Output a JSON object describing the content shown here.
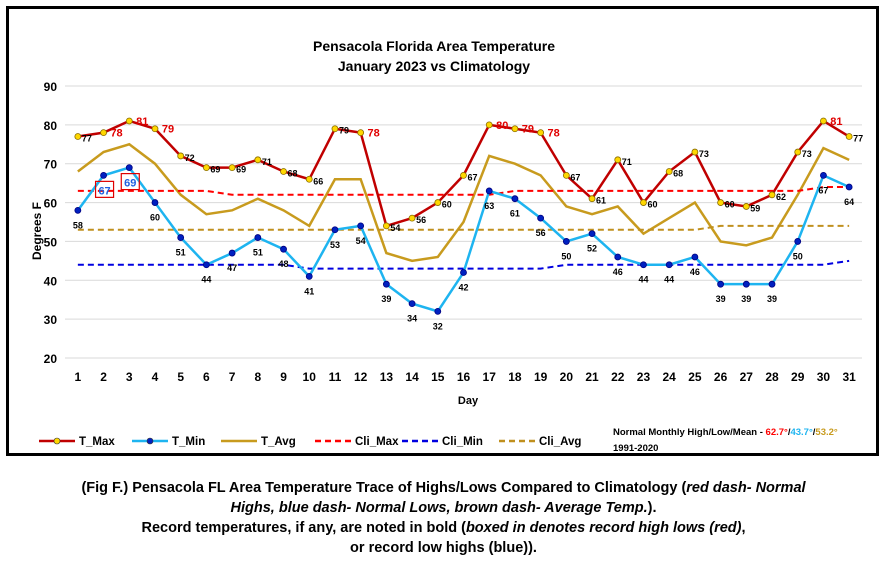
{
  "chart_data": {
    "type": "line",
    "title": "Pensacola Florida Area Temperature",
    "subtitle": "January 2023 vs Climatology",
    "xlabel": "Day",
    "ylabel": "Degrees F",
    "ylim": [
      20,
      90
    ],
    "yticks": [
      20,
      30,
      40,
      50,
      60,
      70,
      80,
      90
    ],
    "grid": true,
    "legend_position": "bottom",
    "x": [
      1,
      2,
      3,
      4,
      5,
      6,
      7,
      8,
      9,
      10,
      11,
      12,
      13,
      14,
      15,
      16,
      17,
      18,
      19,
      20,
      21,
      22,
      23,
      24,
      25,
      26,
      27,
      28,
      29,
      30,
      31
    ],
    "series": [
      {
        "name": "T_Max",
        "color": "#c00000",
        "marker": "#ffd700",
        "style": "solid",
        "values": [
          77,
          78,
          81,
          79,
          72,
          69,
          69,
          71,
          68,
          66,
          79,
          78,
          54,
          56,
          60,
          67,
          80,
          79,
          78,
          67,
          61,
          71,
          60,
          68,
          73,
          60,
          59,
          62,
          73,
          81,
          77
        ]
      },
      {
        "name": "T_Min",
        "color": "#1eb4f0",
        "marker": "#0020c0",
        "style": "solid",
        "values": [
          58,
          67,
          69,
          60,
          51,
          44,
          47,
          51,
          48,
          41,
          53,
          54,
          39,
          34,
          32,
          42,
          63,
          61,
          56,
          50,
          52,
          46,
          44,
          44,
          46,
          39,
          39,
          39,
          50,
          67,
          64
        ]
      },
      {
        "name": "T_Avg",
        "color": "#c89b1e",
        "style": "solid",
        "values": [
          68,
          73,
          75,
          70,
          62,
          57,
          58,
          61,
          58,
          54,
          66,
          66,
          47,
          45,
          46,
          55,
          72,
          70,
          67,
          59,
          57,
          59,
          52,
          56,
          60,
          50,
          49,
          51,
          62,
          74,
          71
        ]
      },
      {
        "name": "Cli_Max",
        "color": "#ff0000",
        "style": "dash",
        "values": [
          63,
          63,
          63,
          63,
          63,
          63,
          62,
          62,
          62,
          62,
          62,
          62,
          62,
          62,
          62,
          62,
          62,
          63,
          63,
          63,
          63,
          63,
          63,
          63,
          63,
          63,
          63,
          63,
          63,
          64,
          64
        ]
      },
      {
        "name": "Cli_Min",
        "color": "#0000e0",
        "style": "dash",
        "values": [
          44,
          44,
          44,
          44,
          44,
          44,
          44,
          44,
          44,
          43,
          43,
          43,
          43,
          43,
          43,
          43,
          43,
          43,
          43,
          44,
          44,
          44,
          44,
          44,
          44,
          44,
          44,
          44,
          44,
          44,
          45
        ]
      },
      {
        "name": "Cli_Avg",
        "color": "#c0901e",
        "style": "dash",
        "values": [
          53,
          53,
          53,
          53,
          53,
          53,
          53,
          53,
          53,
          53,
          53,
          53,
          53,
          53,
          53,
          53,
          53,
          53,
          53,
          53,
          53,
          53,
          53,
          53,
          53,
          54,
          54,
          54,
          54,
          54,
          54
        ]
      }
    ],
    "max_labels": [
      "77",
      "78",
      "81",
      "79",
      "72",
      "69",
      "69",
      "71",
      "68",
      "66",
      "79",
      "78",
      "54",
      "56",
      "60",
      "67",
      "80",
      "79",
      "78",
      "67",
      "61",
      "71",
      "60",
      "68",
      "73",
      "60",
      "59",
      "62",
      "73",
      "81",
      "77"
    ],
    "min_labels": [
      "58",
      "67",
      "69",
      "60",
      "51",
      "44",
      "47",
      "51",
      "48",
      "41",
      "53",
      "54",
      "39",
      "34",
      "32",
      "42",
      "63",
      "61",
      "56",
      "50",
      "52",
      "46",
      "44",
      "44",
      "46",
      "39",
      "39",
      "39",
      "50",
      "67",
      "64"
    ],
    "record_highs": [
      2,
      3,
      4,
      12,
      17,
      18,
      19,
      30
    ],
    "record_high_mins": [
      2,
      3
    ],
    "normals_note": {
      "prefix": "Normal Monthly High/Low/Mean - ",
      "high": "62.7°",
      "sep1": "/",
      "low": "43.7°",
      "sep2": "/",
      "mean": "53.2°",
      "period": "1991-2020"
    }
  },
  "caption": {
    "l1a": "(Fig F.) Pensacola FL Area Temperature Trace of Highs/Lows Compared to Climatology (",
    "l1b": "red dash- Normal",
    "l2a": "Highs, blue dash- Normal Lows, brown dash- Average Temp.",
    "l2b": ").",
    "l3a": "Record temperatures, if any, are noted in bold (",
    "l3b": "boxed in denotes record high lows (red)",
    "l3c": ",",
    "l4": "or record low highs (blue))."
  }
}
